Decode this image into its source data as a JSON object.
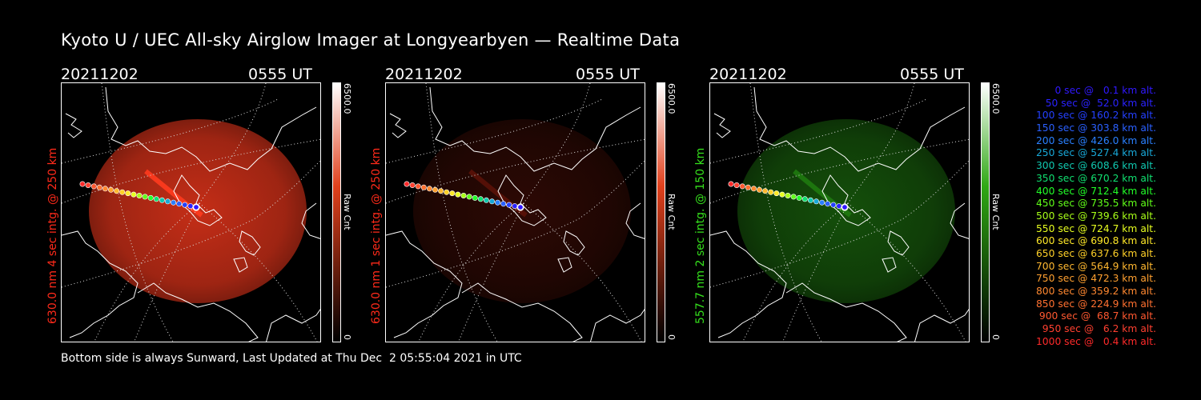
{
  "title": "Kyoto U / UEC All-sky Airglow Imager at Longyearbyen — Realtime Data",
  "panels": [
    {
      "date": "20211202",
      "time": "0555 UT",
      "side_label": "630.0 nm 4 sec intg. @ 250 km",
      "side_color": "#ff2a1a",
      "cbar_max": "6500.0",
      "cbar_min": "0",
      "cbar_unit": "Raw Cnt",
      "cbar_color": "#e0401c",
      "glow_color": "#ff3b1e",
      "glow_strength": 0.62
    },
    {
      "date": "20211202",
      "time": "0555 UT",
      "side_label": "630.0 nm 1 sec intg. @ 250 km",
      "side_color": "#ff2a1a",
      "cbar_max": "6500.0",
      "cbar_min": "0",
      "cbar_unit": "Raw Cnt",
      "cbar_color": "#e0401c",
      "glow_color": "#5a1208",
      "glow_strength": 0.35
    },
    {
      "date": "20211202",
      "time": "0555 UT",
      "side_label": "557.7 nm 2 sec intg. @ 150 km",
      "side_color": "#35e01c",
      "cbar_max": "6500.0",
      "cbar_min": "0",
      "cbar_unit": "Raw Cnt",
      "cbar_color": "#2fa814",
      "glow_color": "#1f7a10",
      "glow_strength": 0.5
    }
  ],
  "legend": [
    {
      "text": "0 sec @   0.1 km alt.",
      "color": "#3018ff"
    },
    {
      "text": "50 sec @  52.0 km alt.",
      "color": "#2a22ff"
    },
    {
      "text": "100 sec @ 160.2 km alt.",
      "color": "#2440ff"
    },
    {
      "text": "150 sec @ 303.8 km alt.",
      "color": "#2a60ff"
    },
    {
      "text": "200 sec @ 426.0 km alt.",
      "color": "#2a80ff"
    },
    {
      "text": "250 sec @ 527.4 km alt.",
      "color": "#18a8d8"
    },
    {
      "text": "300 sec @ 608.6 km alt.",
      "color": "#10c8b0"
    },
    {
      "text": "350 sec @ 670.2 km alt.",
      "color": "#10e070"
    },
    {
      "text": "400 sec @ 712.4 km alt.",
      "color": "#22ff28"
    },
    {
      "text": "450 sec @ 735.5 km alt.",
      "color": "#60ff18"
    },
    {
      "text": "500 sec @ 739.6 km alt.",
      "color": "#a8ff18"
    },
    {
      "text": "550 sec @ 724.7 km alt.",
      "color": "#e8ff20"
    },
    {
      "text": "600 sec @ 690.8 km alt.",
      "color": "#ffe828"
    },
    {
      "text": "650 sec @ 637.6 km alt.",
      "color": "#ffd028"
    },
    {
      "text": "700 sec @ 564.9 km alt.",
      "color": "#ffb830"
    },
    {
      "text": "750 sec @ 472.3 km alt.",
      "color": "#ffa030"
    },
    {
      "text": "800 sec @ 359.2 km alt.",
      "color": "#ff8830"
    },
    {
      "text": "850 sec @ 224.9 km alt.",
      "color": "#ff7030"
    },
    {
      "text": "900 sec @  68.7 km alt.",
      "color": "#ff5830"
    },
    {
      "text": "950 sec @   6.2 km alt.",
      "color": "#ff4030"
    },
    {
      "text": "1000 sec @   0.4 km alt.",
      "color": "#ff2a2a"
    }
  ],
  "footer": "Bottom side is always Sunward, Last Updated at Thu Dec  2 05:55:04 2021 in UTC"
}
